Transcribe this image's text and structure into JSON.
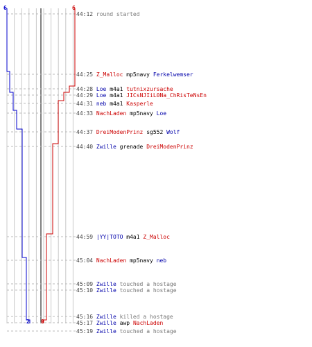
{
  "colors": {
    "blue_team": "#0000cc",
    "red_team": "#cc0000",
    "grid": "#c8c8c8",
    "center": "#808080",
    "dash": "#bbbbbb",
    "gray_text": "#777777"
  },
  "score": {
    "blue_start": "6",
    "red_start": "6",
    "blue_end": "2",
    "red_end": "0"
  },
  "events": [
    {
      "time": "44:12",
      "actor": "",
      "actor_team": "",
      "action": "round started",
      "target": "",
      "target_team": ""
    },
    {
      "time": "44:25",
      "actor": "Z_Malloc",
      "actor_team": "red",
      "action": "mp5navy",
      "target": "Ferkelwemser",
      "target_team": "blue"
    },
    {
      "time": "44:28",
      "actor": "Loe",
      "actor_team": "blue",
      "action": "m4a1",
      "target": "tutnixzursache",
      "target_team": "red"
    },
    {
      "time": "44:29",
      "actor": "Loe",
      "actor_team": "blue",
      "action": "m4a1",
      "target": "JICsNJIiL0Na_ChRisTeNsEn",
      "target_team": "red"
    },
    {
      "time": "44:31",
      "actor": "neb",
      "actor_team": "blue",
      "action": "m4a1",
      "target": "Kasperle",
      "target_team": "red"
    },
    {
      "time": "44:33",
      "actor": "NachLaden",
      "actor_team": "red",
      "action": "mp5navy",
      "target": "Loe",
      "target_team": "blue"
    },
    {
      "time": "44:37",
      "actor": "DreiModenPrinz",
      "actor_team": "red",
      "action": "sg552",
      "target": "Wolf",
      "target_team": "blue"
    },
    {
      "time": "44:40",
      "actor": "Zwille",
      "actor_team": "blue",
      "action": "grenade",
      "target": "DreiModenPrinz",
      "target_team": "red"
    },
    {
      "time": "44:59",
      "actor": "|YY|TOTO",
      "actor_team": "blue",
      "action": "m4a1",
      "target": "Z_Malloc",
      "target_team": "red"
    },
    {
      "time": "45:04",
      "actor": "NachLaden",
      "actor_team": "red",
      "action": "mp5navy",
      "target": "neb",
      "target_team": "blue"
    },
    {
      "time": "45:09",
      "actor": "Zwille",
      "actor_team": "blue",
      "action": "touched a hostage",
      "target": "",
      "target_team": ""
    },
    {
      "time": "45:10",
      "actor": "Zwille",
      "actor_team": "blue",
      "action": "touched a hostage",
      "target": "",
      "target_team": ""
    },
    {
      "time": "45:16",
      "actor": "Zwille",
      "actor_team": "blue",
      "action": "killed a hostage",
      "target": "",
      "target_team": ""
    },
    {
      "time": "45:17",
      "actor": "Zwille",
      "actor_team": "blue",
      "action": "awp",
      "target": "NachLaden",
      "target_team": "red"
    },
    {
      "time": "45:19",
      "actor": "Zwille",
      "actor_team": "blue",
      "action": "touched a hostage",
      "target": "",
      "target_team": ""
    }
  ]
}
